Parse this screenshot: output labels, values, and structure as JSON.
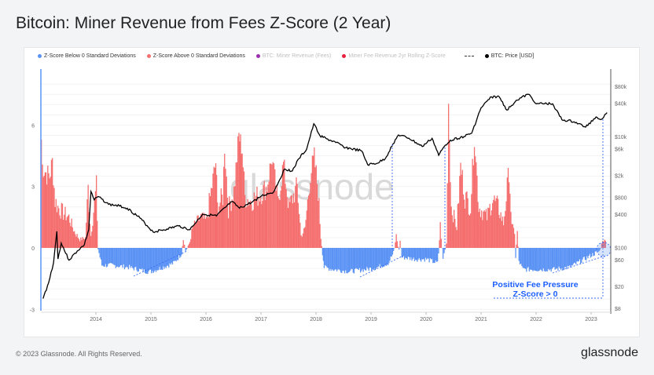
{
  "title": "Bitcoin: Miner Revenue from Fees Z-Score (2 Year)",
  "footer": "© 2023 Glassnode. All Rights Reserved.",
  "brand": "glassnode",
  "watermark": "glassnode",
  "legend": [
    {
      "label": "Z-Score Below 0 Standard Deviations",
      "color": "#5b93f5",
      "marker": "dot",
      "active": true
    },
    {
      "label": "Z-Score Above 0 Standard Deviations",
      "color": "#f56f6f",
      "marker": "dot",
      "active": true
    },
    {
      "label": "BTC: Miner Revenue (Fees)",
      "color": "#9b2fae",
      "marker": "dot",
      "active": false
    },
    {
      "label": "Miner Fee Revenue 2yr Rolling Z-Score",
      "color": "#e8213f",
      "marker": "dot",
      "active": false
    },
    {
      "label": "",
      "color": "#333333",
      "marker": "dash",
      "active": true
    },
    {
      "label": "BTC: Price [USD]",
      "color": "#000000",
      "marker": "dot",
      "active": true
    }
  ],
  "annotation": {
    "line1": "Positive Fee Pressure",
    "line2": "Z-Score > 0",
    "color": "#1a5cff"
  },
  "chart_data": {
    "type": "area+line",
    "x_ticks": [
      "2014",
      "2015",
      "2016",
      "2017",
      "2018",
      "2019",
      "2020",
      "2021",
      "2022",
      "2023"
    ],
    "y_left_ticks": [
      "6",
      "3",
      "0",
      "-3"
    ],
    "y_left_range": [
      -3,
      7.5
    ],
    "y_right_ticks": [
      "$80k",
      "$40k",
      "$10k",
      "$6k",
      "$2k",
      "$800",
      "$400",
      "$100",
      "$60",
      "$20",
      "$8"
    ],
    "y_right_scale": "log",
    "y_right_range": [
      8,
      80000
    ],
    "grid": true,
    "legend_placement": "top",
    "colors": {
      "positive": "#f56f6f",
      "negative": "#5b93f5",
      "price": "#000000"
    },
    "zscore": [
      [
        2013.0,
        5.3
      ],
      [
        2013.02,
        4.0
      ],
      [
        2013.1,
        3.6
      ],
      [
        2013.15,
        3.5
      ],
      [
        2013.2,
        4.2
      ],
      [
        2013.25,
        2.3
      ],
      [
        2013.3,
        2.0
      ],
      [
        2013.4,
        1.7
      ],
      [
        2013.5,
        1.5
      ],
      [
        2013.6,
        0.8
      ],
      [
        2013.7,
        0.4
      ],
      [
        2013.8,
        0.5
      ],
      [
        2013.85,
        2.9
      ],
      [
        2013.9,
        0.6
      ],
      [
        2013.95,
        1.8
      ],
      [
        2014.0,
        3.0
      ],
      [
        2014.03,
        -0.1
      ],
      [
        2014.1,
        -0.9
      ],
      [
        2014.3,
        -0.9
      ],
      [
        2014.6,
        -1.0
      ],
      [
        2014.9,
        -1.2
      ],
      [
        2015.0,
        -1.2
      ],
      [
        2015.2,
        -1.0
      ],
      [
        2015.4,
        -0.8
      ],
      [
        2015.5,
        -0.5
      ],
      [
        2015.55,
        -0.3
      ],
      [
        2015.58,
        0.5
      ],
      [
        2015.62,
        -0.2
      ],
      [
        2015.7,
        0.3
      ],
      [
        2015.75,
        1.0
      ],
      [
        2015.9,
        1.5
      ],
      [
        2016.0,
        1.3
      ],
      [
        2016.17,
        4.2
      ],
      [
        2016.2,
        2.0
      ],
      [
        2016.3,
        2.5
      ],
      [
        2016.33,
        5.0
      ],
      [
        2016.4,
        1.9
      ],
      [
        2016.5,
        2.8
      ],
      [
        2016.59,
        5.5
      ],
      [
        2016.65,
        4.8
      ],
      [
        2016.7,
        2.5
      ],
      [
        2016.8,
        2.3
      ],
      [
        2016.97,
        2.6
      ],
      [
        2017.1,
        3.0
      ],
      [
        2017.19,
        4.4
      ],
      [
        2017.3,
        2.2
      ],
      [
        2017.4,
        4.1
      ],
      [
        2017.5,
        2.0
      ],
      [
        2017.65,
        3.0
      ],
      [
        2017.72,
        0.6
      ],
      [
        2017.79,
        0.9
      ],
      [
        2017.89,
        3.6
      ],
      [
        2017.96,
        4.4
      ],
      [
        2018.03,
        2.8
      ],
      [
        2018.08,
        0.5
      ],
      [
        2018.11,
        -0.3
      ],
      [
        2018.14,
        -1.0
      ],
      [
        2018.3,
        -1.1
      ],
      [
        2018.6,
        -1.2
      ],
      [
        2018.9,
        -1.1
      ],
      [
        2019.1,
        -1.0
      ],
      [
        2019.3,
        -0.8
      ],
      [
        2019.4,
        -0.3
      ],
      [
        2019.45,
        0.6
      ],
      [
        2019.5,
        -0.2
      ],
      [
        2019.52,
        0.4
      ],
      [
        2019.55,
        -0.5
      ],
      [
        2019.8,
        -0.6
      ],
      [
        2020.0,
        -0.6
      ],
      [
        2020.2,
        -0.8
      ],
      [
        2020.22,
        -0.3
      ],
      [
        2020.25,
        1.1
      ],
      [
        2020.3,
        -0.6
      ],
      [
        2020.36,
        0.2
      ],
      [
        2020.4,
        7.1
      ],
      [
        2020.45,
        2.0
      ],
      [
        2020.55,
        1.0
      ],
      [
        2020.62,
        4.0
      ],
      [
        2020.7,
        2.5
      ],
      [
        2020.8,
        2.0
      ],
      [
        2020.87,
        5.5
      ],
      [
        2020.95,
        2.0
      ],
      [
        2021.1,
        1.5
      ],
      [
        2021.2,
        2.4
      ],
      [
        2021.3,
        2.0
      ],
      [
        2021.4,
        1.2
      ],
      [
        2021.5,
        3.8
      ],
      [
        2021.55,
        1.0
      ],
      [
        2021.6,
        0.8
      ],
      [
        2021.62,
        -0.5
      ],
      [
        2021.65,
        0.8
      ],
      [
        2021.68,
        -0.7
      ],
      [
        2021.75,
        -1.1
      ],
      [
        2022.0,
        -1.1
      ],
      [
        2022.3,
        -1.1
      ],
      [
        2022.6,
        -1.0
      ],
      [
        2022.8,
        -0.7
      ],
      [
        2023.0,
        -0.4
      ],
      [
        2023.15,
        -0.2
      ],
      [
        2023.2,
        0.4
      ],
      [
        2023.27,
        0.3
      ]
    ],
    "price": [
      [
        2013.04,
        12
      ],
      [
        2013.14,
        23
      ],
      [
        2013.23,
        53
      ],
      [
        2013.29,
        195
      ],
      [
        2013.31,
        62
      ],
      [
        2013.37,
        120
      ],
      [
        2013.51,
        59
      ],
      [
        2013.66,
        86
      ],
      [
        2013.79,
        112
      ],
      [
        2013.87,
        210
      ],
      [
        2013.91,
        1020
      ],
      [
        2013.97,
        720
      ],
      [
        2014.04,
        830
      ],
      [
        2014.23,
        600
      ],
      [
        2014.43,
        560
      ],
      [
        2014.57,
        510
      ],
      [
        2014.8,
        340
      ],
      [
        2015.04,
        190
      ],
      [
        2015.29,
        215
      ],
      [
        2015.5,
        245
      ],
      [
        2015.71,
        210
      ],
      [
        2015.94,
        400
      ],
      [
        2016.19,
        370
      ],
      [
        2016.47,
        670
      ],
      [
        2016.61,
        510
      ],
      [
        2016.83,
        650
      ],
      [
        2017.01,
        850
      ],
      [
        2017.23,
        1000
      ],
      [
        2017.43,
        2600
      ],
      [
        2017.57,
        2400
      ],
      [
        2017.69,
        4000
      ],
      [
        2017.83,
        5900
      ],
      [
        2017.96,
        17000
      ],
      [
        2018.07,
        10400
      ],
      [
        2018.19,
        9100
      ],
      [
        2018.36,
        7800
      ],
      [
        2018.54,
        6300
      ],
      [
        2018.83,
        5500
      ],
      [
        2018.94,
        3100
      ],
      [
        2019.11,
        3300
      ],
      [
        2019.26,
        4000
      ],
      [
        2019.4,
        7400
      ],
      [
        2019.5,
        10700
      ],
      [
        2019.69,
        9300
      ],
      [
        2019.93,
        6600
      ],
      [
        2020.11,
        9300
      ],
      [
        2020.23,
        4600
      ],
      [
        2020.33,
        6600
      ],
      [
        2020.44,
        8600
      ],
      [
        2020.69,
        10000
      ],
      [
        2020.83,
        11500
      ],
      [
        2021.0,
        33000
      ],
      [
        2021.19,
        52000
      ],
      [
        2021.33,
        52000
      ],
      [
        2021.47,
        30000
      ],
      [
        2021.64,
        45000
      ],
      [
        2021.86,
        58000
      ],
      [
        2022.01,
        39000
      ],
      [
        2022.3,
        39000
      ],
      [
        2022.47,
        20000
      ],
      [
        2022.69,
        18500
      ],
      [
        2022.9,
        14800
      ],
      [
        2023.09,
        22500
      ],
      [
        2023.19,
        20500
      ],
      [
        2023.29,
        27000
      ]
    ]
  }
}
